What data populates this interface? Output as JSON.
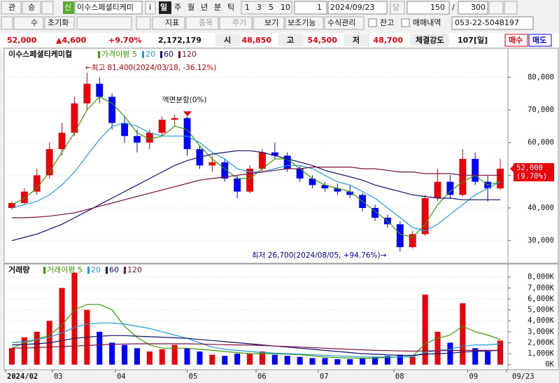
{
  "toolbar": {
    "row1": [
      "관",
      "승",
      "신",
      "이수스페셜티케미",
      "i",
      "일",
      "주",
      "월",
      "년",
      "분",
      "틱",
      "1",
      "3",
      "5",
      "10",
      "1",
      "2024/09/23",
      "당",
      "150",
      "/",
      "300"
    ],
    "row2": [
      "수",
      "초기화",
      "지표",
      "종목",
      "주기",
      "보기",
      "보조기능",
      "수식관리",
      "잔고",
      "매매내역",
      "053-22-5048197"
    ]
  },
  "info_bar": {
    "price": "52,000",
    "change": "▲4,600",
    "rate": "+9.70%",
    "volume": "2,172,179",
    "open_label": "시",
    "open": "48,850",
    "high_label": "고",
    "high": "54,500",
    "low_label": "저",
    "low": "48,700",
    "strength_label": "체결강도",
    "strength": "107[일]",
    "buy": "매수",
    "sell": "매도"
  },
  "chart_data": [
    {
      "type": "candlestick",
      "title": "이수스페셜티케미컬",
      "up_color": "#e8000b",
      "down_color": "#0000ff",
      "xlim": [
        -0.5,
        39.5
      ],
      "ylim": [
        23500,
        88200
      ],
      "grid": true,
      "yticks": [
        {
          "value": 30000,
          "label": "30,000"
        },
        {
          "value": 40000,
          "label": "40,000"
        },
        {
          "value": 50000,
          "label": "50,000"
        },
        {
          "value": 60000,
          "label": "60,000"
        },
        {
          "value": 70000,
          "label": "70,000"
        },
        {
          "value": 80000,
          "label": "80,000"
        }
      ],
      "open": [
        40000,
        41500,
        45000,
        50000,
        58000,
        63000,
        72000,
        78000,
        74000,
        66000,
        62000,
        60000,
        63000,
        67000,
        67500,
        58000,
        53000,
        54000,
        49000,
        45000,
        52000,
        57000,
        56000,
        52000,
        49000,
        47000,
        46000,
        45000,
        44000,
        40000,
        37000,
        35000,
        28000,
        32000,
        43000,
        48000,
        44000,
        55000,
        48000,
        46000
      ],
      "high": [
        42000,
        46000,
        52000,
        60000,
        66000,
        74000,
        81400,
        80000,
        75000,
        68000,
        64000,
        64000,
        68000,
        68500,
        68000,
        59000,
        56000,
        55000,
        50000,
        53000,
        58000,
        60000,
        57000,
        53000,
        50000,
        48000,
        47500,
        47000,
        44500,
        41000,
        38000,
        36000,
        33000,
        44000,
        52000,
        50000,
        58000,
        57000,
        50000,
        55000
      ],
      "low": [
        39500,
        41000,
        44000,
        49000,
        56000,
        62000,
        70000,
        72000,
        64000,
        60000,
        57000,
        58000,
        62000,
        65000,
        56000,
        52000,
        51000,
        48000,
        43000,
        44500,
        51000,
        55000,
        51000,
        48000,
        46000,
        45000,
        44000,
        43000,
        39000,
        36000,
        34000,
        26700,
        27500,
        31500,
        42000,
        43000,
        43500,
        47000,
        42000,
        45500
      ],
      "close": [
        41500,
        45000,
        50000,
        58000,
        63000,
        72000,
        78000,
        74000,
        66000,
        62000,
        60000,
        63000,
        67000,
        67500,
        58000,
        53000,
        54000,
        49000,
        45000,
        52000,
        57000,
        56000,
        52000,
        49000,
        47000,
        46000,
        45000,
        44000,
        40000,
        37000,
        35000,
        28000,
        32000,
        43000,
        48000,
        44000,
        55000,
        48000,
        46000,
        52000
      ],
      "series": [
        {
          "name": "가격이평 5",
          "color": "#3a9a00",
          "values": [
            41000,
            43000,
            46000,
            51000,
            57000,
            63000,
            70000,
            74000,
            72000,
            68000,
            63000,
            61000,
            62000,
            65000,
            64000,
            59000,
            55000,
            52000,
            49000,
            49000,
            52000,
            55000,
            55000,
            52000,
            49000,
            47000,
            46000,
            45000,
            42000,
            39000,
            36000,
            32000,
            31000,
            35000,
            41000,
            45000,
            48000,
            50000,
            47000,
            48000
          ]
        },
        {
          "name": "20",
          "color": "#1e9bd7",
          "values": [
            40000,
            41000,
            42000,
            44000,
            47000,
            51000,
            56000,
            61000,
            65000,
            66000,
            65000,
            63000,
            62000,
            62000,
            62000,
            60000,
            57000,
            55000,
            52000,
            51000,
            51000,
            52000,
            53000,
            53000,
            52000,
            50000,
            48000,
            47000,
            45000,
            43000,
            40000,
            37000,
            34000,
            33000,
            35000,
            38000,
            41000,
            44000,
            46000,
            48000
          ]
        },
        {
          "name": "60",
          "color": "#10106e",
          "values": [
            30000,
            31000,
            32000,
            33500,
            35000,
            37000,
            39000,
            41000,
            43000,
            45000,
            47000,
            49000,
            51000,
            53000,
            54500,
            55500,
            56500,
            57000,
            57500,
            57500,
            57000,
            56000,
            55000,
            54000,
            53000,
            51500,
            50500,
            49500,
            48500,
            47000,
            46000,
            45000,
            44000,
            43500,
            43000,
            43000,
            42500,
            42500,
            42500,
            42500
          ]
        },
        {
          "name": "120",
          "color": "#7a1040",
          "values": [
            37000,
            37000,
            37200,
            37500,
            38000,
            38500,
            39500,
            40500,
            41500,
            42500,
            43500,
            44500,
            45500,
            46500,
            47500,
            48500,
            49000,
            49500,
            50000,
            50500,
            51000,
            51500,
            52000,
            52000,
            52500,
            52500,
            52500,
            52500,
            52000,
            52000,
            51500,
            51000,
            51000,
            50500,
            50500,
            50500,
            50000,
            50000,
            50000,
            50000
          ]
        }
      ],
      "annotations": {
        "high": "←최고 81,400(2024/03/18, -36.12%)",
        "split": "액면분할(0%)",
        "low": "최저 26,700(2024/08/05, +94.76%)→",
        "last_price": "52,000",
        "last_rate": "(9.70%)"
      }
    },
    {
      "type": "bar",
      "title": "거래량",
      "xlim": [
        -0.5,
        39.5
      ],
      "ylim": [
        -400,
        9000
      ],
      "grid": true,
      "yticks": [
        {
          "value": 0,
          "label": "0K"
        },
        {
          "value": 1000,
          "label": "1,000K"
        },
        {
          "value": 2000,
          "label": "2,000K"
        },
        {
          "value": 3000,
          "label": "3,000K"
        },
        {
          "value": 4000,
          "label": "4,000K"
        },
        {
          "value": 5000,
          "label": "5,000K"
        },
        {
          "value": 6000,
          "label": "6,000K"
        },
        {
          "value": 7000,
          "label": "7,000K"
        },
        {
          "value": 8000,
          "label": "8,000K"
        }
      ],
      "xticks": [
        {
          "value": -0.5,
          "label": "2024/02"
        },
        {
          "value": 3.24,
          "label": "03"
        },
        {
          "value": 8.27,
          "label": "04"
        },
        {
          "value": 14,
          "label": "05"
        },
        {
          "value": 19.5,
          "label": "06"
        },
        {
          "value": 24.47,
          "label": "07"
        },
        {
          "value": 30.5,
          "label": "08"
        },
        {
          "value": 36.4,
          "label": "09"
        },
        {
          "value": 39.5,
          "label": "09/23"
        }
      ],
      "values": [
        1500,
        2500,
        3000,
        4000,
        7000,
        8400,
        5000,
        3000,
        2000,
        1800,
        1500,
        1200,
        1400,
        1800,
        1500,
        1200,
        900,
        800,
        1000,
        1000,
        1200,
        900,
        800,
        700,
        600,
        600,
        500,
        500,
        600,
        700,
        800,
        900,
        700,
        6400,
        3000,
        2000,
        5600,
        1500,
        1200,
        2200
      ],
      "series": [
        {
          "name": "거래이평 5",
          "color": "#3a9a00",
          "values": [
            1500,
            2000,
            2300,
            2700,
            3600,
            5000,
            5500,
            5500,
            5000,
            3500,
            2500,
            1800,
            1500,
            1500,
            1500,
            1400,
            1300,
            1200,
            1100,
            1000,
            1000,
            1000,
            950,
            900,
            800,
            700,
            650,
            600,
            580,
            600,
            650,
            700,
            750,
            1900,
            2400,
            2700,
            3500,
            3000,
            2700,
            2300
          ]
        },
        {
          "name": "20",
          "color": "#1e9bd7",
          "values": [
            2000,
            2100,
            2300,
            2500,
            2900,
            3400,
            3700,
            3800,
            3800,
            3700,
            3500,
            3300,
            3000,
            2700,
            2400,
            2000,
            1600,
            1400,
            1300,
            1200,
            1100,
            1050,
            1000,
            950,
            900,
            850,
            800,
            750,
            700,
            700,
            700,
            700,
            700,
            1100,
            1300,
            1400,
            1700,
            1800,
            1800,
            1900
          ]
        },
        {
          "name": "60",
          "color": "#10106e",
          "values": [
            1800,
            1850,
            1900,
            2000,
            2200,
            2400,
            2500,
            2600,
            2650,
            2650,
            2600,
            2550,
            2500,
            2450,
            2400,
            2300,
            2200,
            2100,
            2000,
            1900,
            1800,
            1700,
            1600,
            1500,
            1400,
            1300,
            1200,
            1100,
            1000,
            950,
            900,
            850,
            850,
            950,
            1000,
            1050,
            1150,
            1200,
            1250,
            1300
          ]
        },
        {
          "name": "120",
          "color": "#7a1040",
          "values": [
            1500,
            1520,
            1550,
            1600,
            1650,
            1700,
            1750,
            1800,
            1850,
            1880,
            1900,
            1900,
            1900,
            1900,
            1900,
            1880,
            1850,
            1820,
            1800,
            1780,
            1750,
            1700,
            1650,
            1600,
            1550,
            1500,
            1450,
            1400,
            1350,
            1300,
            1280,
            1250,
            1230,
            1250,
            1270,
            1280,
            1300,
            1300,
            1300,
            1300
          ]
        }
      ]
    }
  ]
}
